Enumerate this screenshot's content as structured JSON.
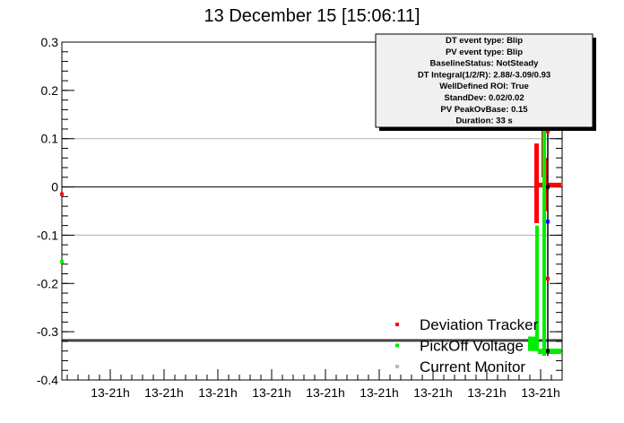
{
  "chart_data": {
    "type": "scatter",
    "title": "13 December 15 [15:06:11]",
    "xlabel": "",
    "ylabel": "",
    "ylim": [
      -0.4,
      0.3
    ],
    "y_ticks": [
      "0.3",
      "0.2",
      "0.1",
      "0",
      "-0.1",
      "-0.2",
      "-0.3",
      "-0.4"
    ],
    "x_tick_labels": [
      "13-21h",
      "13-21h",
      "13-21h",
      "13-21h",
      "13-21h",
      "13-21h",
      "13-21h",
      "13-21h",
      "13-21h"
    ],
    "grid_y": [
      0.1,
      -0.1
    ],
    "reference_lines": [
      0,
      -0.318
    ],
    "legend": {
      "placement": "bottom-right",
      "entries": [
        {
          "label": "Deviation Tracker",
          "color": "#ff0000"
        },
        {
          "label": "PickOff Voltage",
          "color": "#00ee00"
        },
        {
          "label": "Current Monitor",
          "color": "#bbbbbb"
        }
      ]
    },
    "info_box": {
      "placement": "top-right",
      "lines": [
        "DT event type: Blip",
        "PV event type: Blip",
        "BaselineStatus: NotSteady",
        "DT Integral(1/2/R): 2.88/-3.09/0.93",
        "WellDefined ROI: True",
        "StandDev: 0.02/0.02",
        "PV PeakOvBase: 0.15",
        "Duration: 33 s"
      ]
    },
    "series": [
      {
        "name": "Deviation Tracker",
        "color": "#ff0000",
        "baseline_value": 0.0,
        "early_points": [
          {
            "x": 0.0,
            "y": -0.015
          }
        ],
        "event_y_range": [
          -0.075,
          0.12
        ]
      },
      {
        "name": "PickOff Voltage",
        "color": "#00ee00",
        "baseline_value": -0.318,
        "early_points": [
          {
            "x": 0.0,
            "y": -0.155
          }
        ],
        "event_y_range": [
          -0.35,
          0.12
        ]
      },
      {
        "name": "Current Monitor",
        "color": "#bbbbbb",
        "baseline_value": -0.318,
        "early_points": [],
        "event_y_range": []
      }
    ],
    "markers": [
      {
        "color": "#ff0000",
        "y": 0.115
      },
      {
        "color": "#0000ff",
        "y": -0.072
      },
      {
        "color": "#ff0000",
        "y": -0.19
      },
      {
        "color": "#000000",
        "y": 0.0
      },
      {
        "color": "#000000",
        "y": -0.34
      }
    ]
  }
}
